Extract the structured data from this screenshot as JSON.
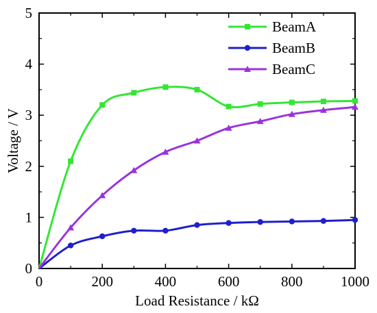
{
  "chart_data": {
    "type": "line",
    "xlabel": "Load Resistance / kΩ",
    "ylabel": "Voltage / V",
    "xlim": [
      0,
      1000
    ],
    "ylim": [
      0,
      5
    ],
    "xticks": [
      "0",
      "200",
      "400",
      "600",
      "800",
      "1000"
    ],
    "yticks": [
      "0",
      "1",
      "2",
      "3",
      "4",
      "5"
    ],
    "grid": false,
    "legend_position": "top-right",
    "x": [
      0,
      100,
      200,
      300,
      400,
      500,
      600,
      700,
      800,
      900,
      1000
    ],
    "series": [
      {
        "name": "BeamA",
        "color": "#33e633",
        "marker": "square",
        "values": [
          0,
          2.1,
          3.2,
          3.44,
          3.55,
          3.5,
          3.17,
          3.22,
          3.25,
          3.27,
          3.28
        ]
      },
      {
        "name": "BeamB",
        "color": "#1f1fcc",
        "marker": "circle",
        "values": [
          0,
          0.45,
          0.63,
          0.74,
          0.74,
          0.85,
          0.89,
          0.91,
          0.92,
          0.93,
          0.95
        ]
      },
      {
        "name": "BeamC",
        "color": "#9933dd",
        "marker": "triangle",
        "values": [
          0,
          0.8,
          1.43,
          1.92,
          2.28,
          2.5,
          2.75,
          2.88,
          3.02,
          3.1,
          3.16
        ]
      }
    ]
  }
}
